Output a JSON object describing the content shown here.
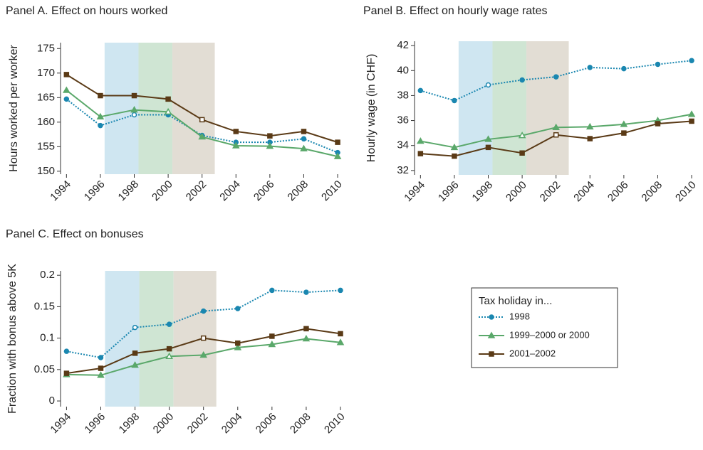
{
  "chart_data": [
    {
      "type": "line",
      "title": "Panel A. Effect on hours worked",
      "y_label": "Hours worked per worker",
      "x": [
        1994,
        1996,
        1998,
        2000,
        2002,
        2004,
        2006,
        2008,
        2010
      ],
      "xlim": [
        1993.65,
        2010.25
      ],
      "xticks": [
        1994,
        1996,
        1998,
        2000,
        2002,
        2004,
        2006,
        2008,
        2010
      ],
      "ylim": [
        149.4,
        176.2
      ],
      "yticks": [
        150,
        155,
        160,
        165,
        170,
        175
      ],
      "shaded": [
        {
          "range": [
            1996.25,
            1998.25
          ],
          "color": "#cfe6f1"
        },
        {
          "range": [
            1998.25,
            2000.25
          ],
          "color": "#cfe5d3"
        },
        {
          "range": [
            2000.25,
            2002.75
          ],
          "color": "#e2ddd4"
        }
      ],
      "series": [
        {
          "name": "1998",
          "color": "#1a87b0",
          "marker": "circle",
          "dash": true,
          "open_marker_x": 1998,
          "values": [
            164.7,
            159.3,
            161.5,
            161.5,
            157.3,
            155.9,
            155.9,
            156.6,
            153.8
          ]
        },
        {
          "name": "1999–2000 or 2000",
          "color": "#5aa86a",
          "marker": "triangle",
          "dash": false,
          "open_marker_x": 2000,
          "values": [
            166.5,
            161.1,
            162.5,
            162.1,
            157.0,
            155.2,
            155.1,
            154.6,
            153.0
          ]
        },
        {
          "name": "2001–2002",
          "color": "#5a3a16",
          "marker": "square",
          "dash": false,
          "open_marker_x": 2002,
          "values": [
            169.7,
            165.4,
            165.4,
            164.7,
            160.5,
            158.1,
            157.2,
            158.1,
            155.9
          ]
        }
      ]
    },
    {
      "type": "line",
      "title": "Panel B. Effect on hourly wage rates",
      "y_label": "Hourly wage (in CHF)",
      "x": [
        1994,
        1996,
        1998,
        2000,
        2002,
        2004,
        2006,
        2008,
        2010
      ],
      "xlim": [
        1993.65,
        2010.25
      ],
      "xticks": [
        1994,
        1996,
        1998,
        2000,
        2002,
        2004,
        2006,
        2008,
        2010
      ],
      "ylim": [
        31.65,
        42.35
      ],
      "yticks": [
        32,
        34,
        36,
        38,
        40,
        42
      ],
      "shaded": [
        {
          "range": [
            1996.25,
            1998.25
          ],
          "color": "#cfe6f1"
        },
        {
          "range": [
            1998.25,
            2000.25
          ],
          "color": "#cfe5d3"
        },
        {
          "range": [
            2000.25,
            2002.75
          ],
          "color": "#e2ddd4"
        }
      ],
      "series": [
        {
          "color": "#1a87b0",
          "marker": "circle",
          "dash": true,
          "open_marker_x": 1998,
          "values": [
            38.4,
            37.6,
            38.85,
            39.25,
            39.5,
            40.25,
            40.15,
            40.5,
            40.8
          ]
        },
        {
          "color": "#5aa86a",
          "marker": "triangle",
          "dash": false,
          "open_marker_x": 2000,
          "values": [
            34.35,
            33.85,
            34.5,
            34.8,
            35.45,
            35.5,
            35.7,
            36.0,
            36.5
          ]
        },
        {
          "color": "#5a3a16",
          "marker": "square",
          "dash": false,
          "open_marker_x": 2002,
          "values": [
            33.35,
            33.15,
            33.85,
            33.4,
            34.85,
            34.55,
            35.0,
            35.75,
            35.95
          ]
        }
      ]
    },
    {
      "type": "line",
      "title": "Panel C. Effect on bonuses",
      "y_label": "Fraction with bonus above 5K",
      "x": [
        1994,
        1996,
        1998,
        2000,
        2002,
        2004,
        2006,
        2008,
        2010
      ],
      "xlim": [
        1993.65,
        2010.25
      ],
      "xticks": [
        1994,
        1996,
        1998,
        2000,
        2002,
        2004,
        2006,
        2008,
        2010
      ],
      "ylim": [
        -0.009,
        0.207
      ],
      "yticks": [
        0,
        0.05,
        0.1,
        0.15,
        0.2
      ],
      "shaded": [
        {
          "range": [
            1996.25,
            1998.25
          ],
          "color": "#cfe6f1"
        },
        {
          "range": [
            1998.25,
            2000.25
          ],
          "color": "#cfe5d3"
        },
        {
          "range": [
            2000.25,
            2002.75
          ],
          "color": "#e2ddd4"
        }
      ],
      "series": [
        {
          "color": "#1a87b0",
          "marker": "circle",
          "dash": true,
          "open_marker_x": 1998,
          "values": [
            0.079,
            0.069,
            0.117,
            0.122,
            0.143,
            0.147,
            0.176,
            0.173,
            0.176
          ]
        },
        {
          "color": "#5aa86a",
          "marker": "triangle",
          "dash": false,
          "open_marker_x": 2000,
          "values": [
            0.042,
            0.041,
            0.057,
            0.071,
            0.073,
            0.085,
            0.09,
            0.099,
            0.093
          ]
        },
        {
          "color": "#5a3a16",
          "marker": "square",
          "dash": false,
          "open_marker_x": 2002,
          "values": [
            0.044,
            0.052,
            0.076,
            0.083,
            0.1,
            0.092,
            0.103,
            0.115,
            0.107
          ]
        }
      ]
    }
  ],
  "legend": {
    "title": "Tax holiday in..."
  }
}
